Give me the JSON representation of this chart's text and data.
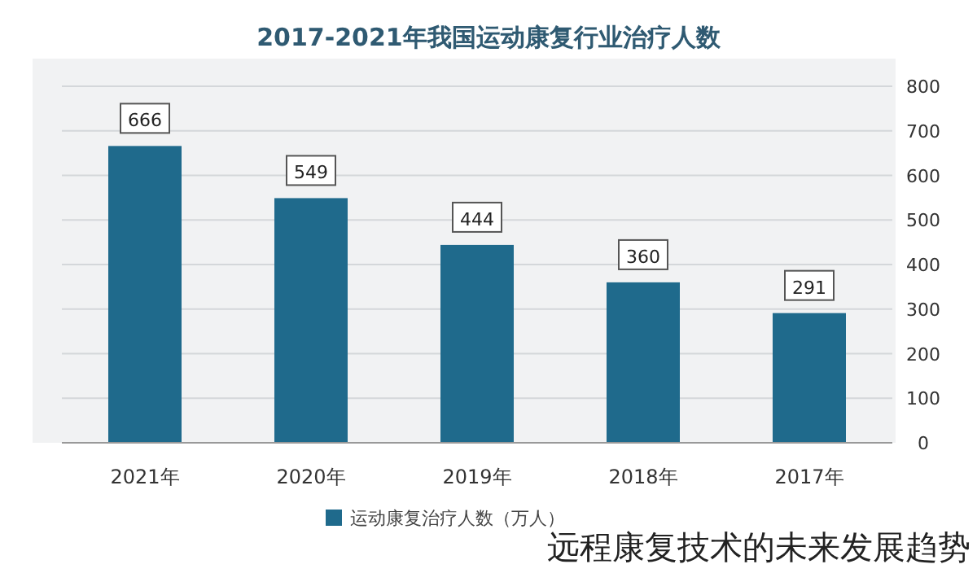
{
  "chart_data": {
    "type": "bar",
    "title": "2017-2021年我国运动康复行业治疗人数",
    "categories": [
      "2021年",
      "2020年",
      "2019年",
      "2018年",
      "2017年"
    ],
    "series": [
      {
        "name": "运动康复治疗人数（万人）",
        "color": "#1f6a8c",
        "values": [
          666,
          549,
          444,
          360,
          291
        ]
      }
    ],
    "ylim": [
      0,
      800
    ],
    "yticks": [
      0,
      100,
      200,
      300,
      400,
      500,
      600,
      700,
      800
    ],
    "grid": "y",
    "legend": "bottom",
    "data_labels": true,
    "annotations": [
      "远程康复技术的未来发展趋势"
    ]
  }
}
